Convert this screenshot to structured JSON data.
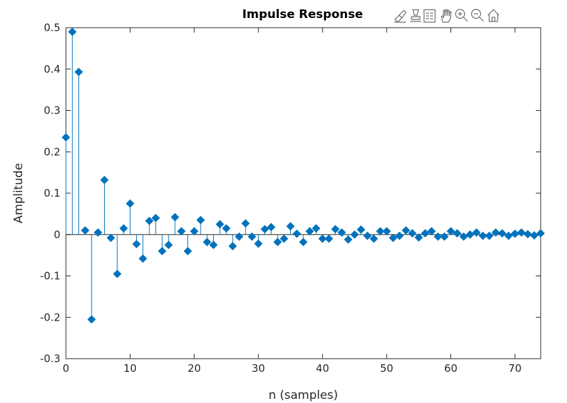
{
  "window": {
    "title": "Impulse Response"
  },
  "toolbar": {
    "icons": [
      "brush-icon",
      "data-tips-icon",
      "legend-icon",
      "pan-hand-icon",
      "zoom-in-icon",
      "zoom-out-icon",
      "home-icon"
    ]
  },
  "colors": {
    "stem": "#0072BD",
    "axis": "#262626"
  },
  "chart_data": {
    "type": "stem",
    "title": "Impulse Response",
    "xlabel": "n (samples)",
    "ylabel": "Amplitude",
    "xlim": [
      0,
      74
    ],
    "ylim": [
      -0.3,
      0.5
    ],
    "xticks": [
      0,
      10,
      20,
      30,
      40,
      50,
      60,
      70
    ],
    "xtick_labels": [
      "0",
      "10",
      "20",
      "30",
      "40",
      "50",
      "60",
      "70"
    ],
    "yticks": [
      -0.3,
      -0.2,
      -0.1,
      0,
      0.1,
      0.2,
      0.3,
      0.4,
      0.5
    ],
    "ytick_labels": [
      "-0.3",
      "-0.2",
      "-0.1",
      "0",
      "0.1",
      "0.2",
      "0.3",
      "0.4",
      "0.5"
    ],
    "marker": "diamond",
    "grid": false,
    "x": [
      0,
      1,
      2,
      3,
      4,
      5,
      6,
      7,
      8,
      9,
      10,
      11,
      12,
      13,
      14,
      15,
      16,
      17,
      18,
      19,
      20,
      21,
      22,
      23,
      24,
      25,
      26,
      27,
      28,
      29,
      30,
      31,
      32,
      33,
      34,
      35,
      36,
      37,
      38,
      39,
      40,
      41,
      42,
      43,
      44,
      45,
      46,
      47,
      48,
      49,
      50,
      51,
      52,
      53,
      54,
      55,
      56,
      57,
      58,
      59,
      60,
      61,
      62,
      63,
      64,
      65,
      66,
      67,
      68,
      69,
      70,
      71,
      72,
      73,
      74
    ],
    "y": [
      0.235,
      0.49,
      0.393,
      0.01,
      -0.205,
      0.005,
      0.132,
      -0.008,
      -0.095,
      0.015,
      0.075,
      -0.023,
      -0.058,
      0.033,
      0.04,
      -0.04,
      -0.025,
      0.042,
      0.008,
      -0.04,
      0.008,
      0.035,
      -0.018,
      -0.025,
      0.025,
      0.015,
      -0.028,
      -0.005,
      0.027,
      -0.005,
      -0.022,
      0.013,
      0.018,
      -0.018,
      -0.01,
      0.02,
      0.002,
      -0.018,
      0.008,
      0.015,
      -0.01,
      -0.01,
      0.013,
      0.005,
      -0.012,
      0.0,
      0.012,
      -0.003,
      -0.01,
      0.008,
      0.008,
      -0.008,
      -0.003,
      0.01,
      0.003,
      -0.007,
      0.003,
      0.008,
      -0.005,
      -0.005,
      0.008,
      0.003,
      -0.005,
      0.0,
      0.005,
      -0.003,
      -0.003,
      0.005,
      0.003,
      -0.003,
      0.002,
      0.005,
      0.001,
      -0.002,
      0.003
    ]
  }
}
